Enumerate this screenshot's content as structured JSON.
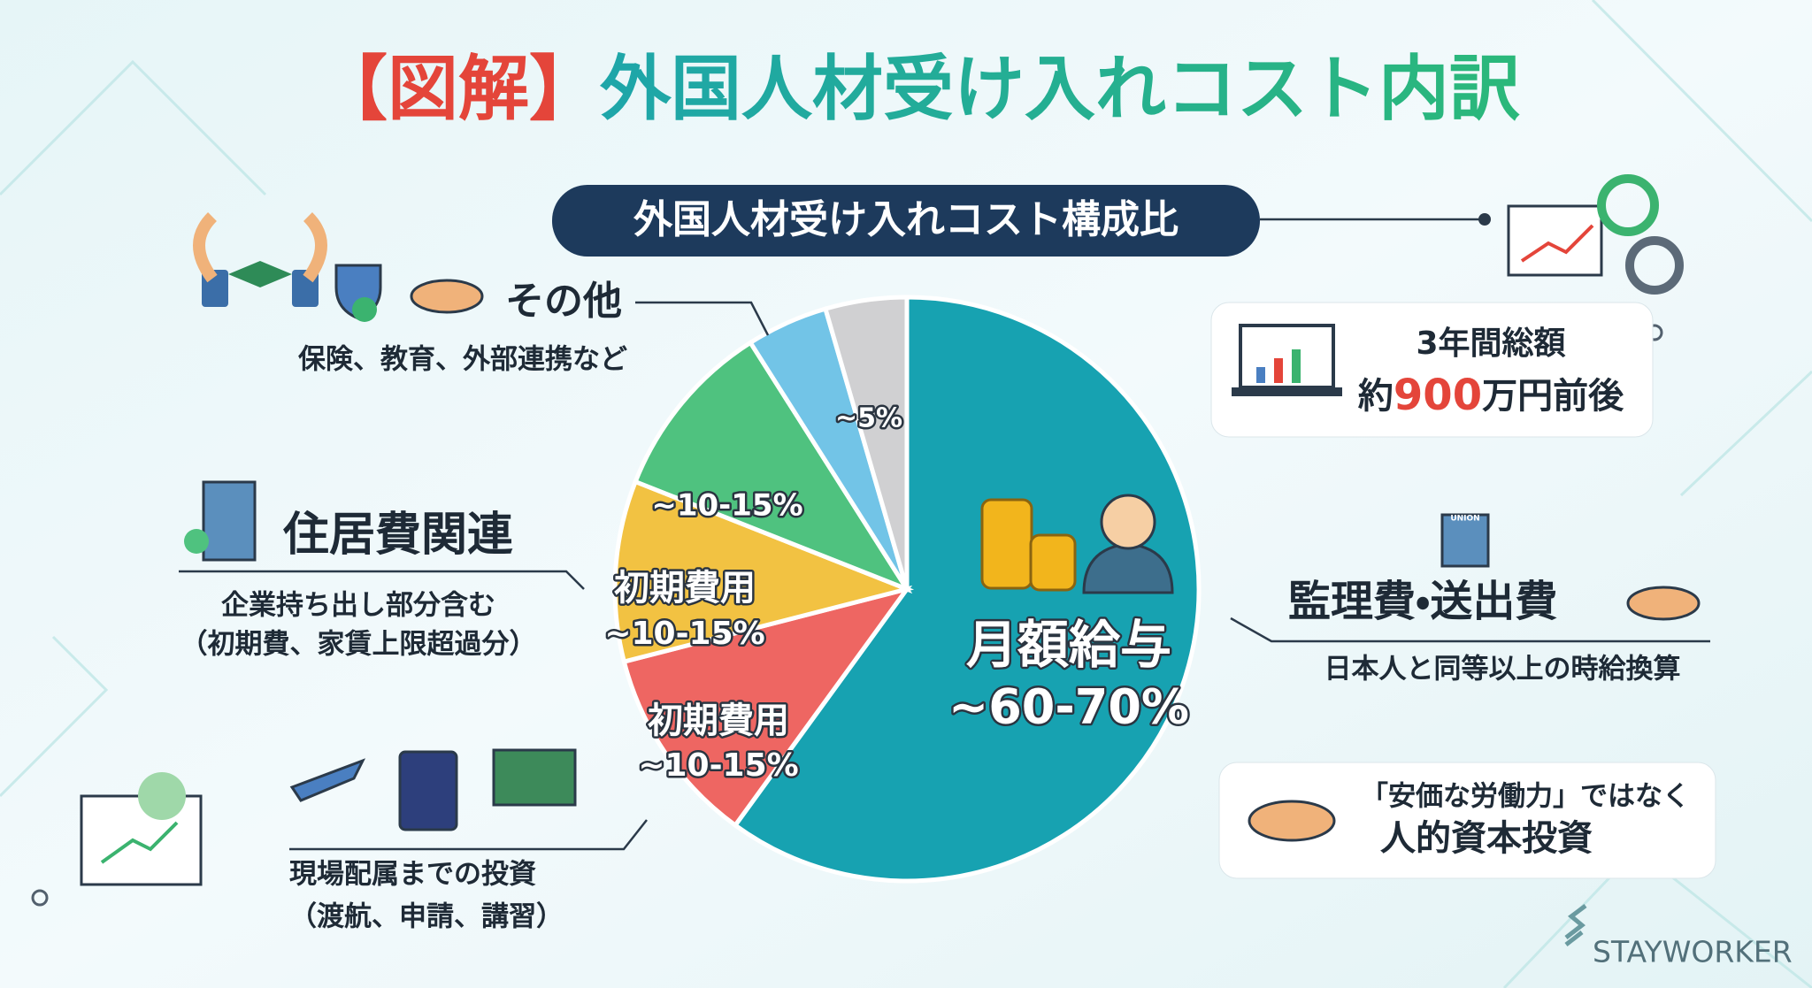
{
  "title_tag": "【図解】",
  "title": "外国人材受け入れコスト内訳",
  "chart_data": {
    "type": "pie",
    "title": "外国人材受け入れコスト構成比",
    "categories": [
      "月額給与",
      "初期費用",
      "初期費用",
      null,
      null,
      null
    ],
    "values": [
      60,
      11,
      10,
      10,
      4.5,
      4.5
    ],
    "value_labels": [
      "~60-70%",
      "~10-15%",
      "~10-15%",
      "~10-15%",
      null,
      "~5%"
    ],
    "colors": [
      "#17a2b1",
      "#ee6662",
      "#f2c242",
      "#4fc27f",
      "#72c4e7",
      "#d0d0d2"
    ]
  },
  "callouts": {
    "other": {
      "title": "その他",
      "text": "保険、教育、外部連携など"
    },
    "housing": {
      "title": "住居費関連",
      "lines": [
        "企業持ち出し部分含む",
        "（初期費、家賃上限超過分）"
      ]
    },
    "initial": {
      "lines": [
        "現場配属までの投資",
        "（渡航、申請、講習）"
      ]
    },
    "total": {
      "title": "3年間総額",
      "prefix": "約",
      "amount": "900",
      "suffix": "万円前後"
    },
    "supervision": {
      "icon_label": "UNION",
      "title": "監理費・送出費",
      "text": "日本人と同等以上の時給換算"
    },
    "message": {
      "lines": [
        "「安価な労働力」ではなく",
        "人的資本投資"
      ]
    }
  },
  "brand": "STAYWORKER"
}
